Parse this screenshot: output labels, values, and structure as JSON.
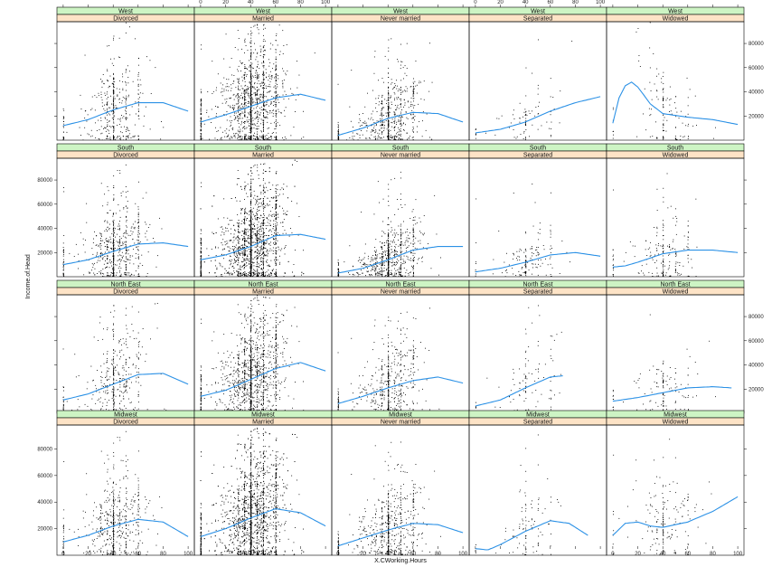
{
  "chart_data": {
    "type": "scatter",
    "xlabel": "X.CWorking.Hours",
    "ylabel": "Income.of.Head",
    "xlim": [
      -5,
      105
    ],
    "ylim": [
      0,
      98000
    ],
    "x_ticks": [
      0,
      20,
      40,
      60,
      80,
      100
    ],
    "y_ticks": [
      20000,
      40000,
      60000,
      80000
    ],
    "strip_colors": {
      "region": "#cdf4c4",
      "marital": "#fde3c6"
    },
    "point_color": "#000000",
    "curve_color": "#2b91e6",
    "regions": [
      "West",
      "South",
      "North East",
      "Midwest"
    ],
    "marital_statuses": [
      "Divorced",
      "Married",
      "Never married",
      "Separated",
      "Widowed"
    ],
    "panels": [
      {
        "region": "West",
        "marital": "Divorced",
        "n_points": 420,
        "smooth": {
          "x": [
            0,
            20,
            40,
            60,
            80,
            100
          ],
          "y": [
            12000,
            17000,
            25000,
            31000,
            31000,
            24000
          ]
        }
      },
      {
        "region": "West",
        "marital": "Married",
        "n_points": 1500,
        "smooth": {
          "x": [
            0,
            20,
            40,
            60,
            80,
            100
          ],
          "y": [
            15000,
            21000,
            28000,
            35000,
            38000,
            33000
          ]
        }
      },
      {
        "region": "West",
        "marital": "Never married",
        "n_points": 650,
        "smooth": {
          "x": [
            0,
            20,
            40,
            60,
            80,
            100
          ],
          "y": [
            4000,
            10000,
            18000,
            23000,
            22000,
            15000
          ]
        }
      },
      {
        "region": "West",
        "marital": "Separated",
        "n_points": 90,
        "smooth": {
          "x": [
            0,
            20,
            40,
            60,
            80,
            100
          ],
          "y": [
            6000,
            9000,
            15000,
            24000,
            31000,
            36000
          ]
        }
      },
      {
        "region": "West",
        "marital": "Widowed",
        "n_points": 140,
        "smooth": {
          "x": [
            0,
            5,
            10,
            15,
            20,
            30,
            40,
            60,
            80,
            100
          ],
          "y": [
            14000,
            35000,
            45000,
            48000,
            44000,
            30000,
            22000,
            19000,
            17000,
            13000
          ]
        }
      },
      {
        "region": "South",
        "marital": "Divorced",
        "n_points": 650,
        "smooth": {
          "x": [
            0,
            20,
            40,
            60,
            80,
            100
          ],
          "y": [
            10000,
            14000,
            21000,
            27000,
            28000,
            25000
          ]
        }
      },
      {
        "region": "South",
        "marital": "Married",
        "n_points": 2200,
        "smooth": {
          "x": [
            0,
            20,
            40,
            60,
            80,
            100
          ],
          "y": [
            14000,
            18000,
            25000,
            34000,
            35000,
            31000
          ]
        }
      },
      {
        "region": "South",
        "marital": "Never married",
        "n_points": 800,
        "smooth": {
          "x": [
            0,
            20,
            40,
            60,
            80,
            100
          ],
          "y": [
            3000,
            7000,
            14000,
            22000,
            25000,
            25000
          ]
        }
      },
      {
        "region": "South",
        "marital": "Separated",
        "n_points": 160,
        "smooth": {
          "x": [
            0,
            20,
            40,
            60,
            80,
            100
          ],
          "y": [
            4000,
            7000,
            12000,
            18000,
            20000,
            17000
          ]
        }
      },
      {
        "region": "South",
        "marital": "Widowed",
        "n_points": 210,
        "smooth": {
          "x": [
            0,
            10,
            20,
            40,
            60,
            80,
            100
          ],
          "y": [
            8000,
            9000,
            12000,
            19000,
            22000,
            22000,
            20000
          ]
        }
      },
      {
        "region": "North East",
        "marital": "Divorced",
        "n_points": 420,
        "smooth": {
          "x": [
            0,
            20,
            40,
            60,
            80,
            100
          ],
          "y": [
            11000,
            16000,
            24000,
            32000,
            33000,
            24000
          ]
        }
      },
      {
        "region": "North East",
        "marital": "Married",
        "n_points": 1500,
        "smooth": {
          "x": [
            0,
            20,
            40,
            60,
            80,
            100
          ],
          "y": [
            14000,
            19000,
            28000,
            37000,
            42000,
            35000
          ]
        }
      },
      {
        "region": "North East",
        "marital": "Never married",
        "n_points": 550,
        "smooth": {
          "x": [
            0,
            20,
            40,
            60,
            80,
            100
          ],
          "y": [
            8000,
            14000,
            21000,
            27000,
            30000,
            25000
          ]
        }
      },
      {
        "region": "North East",
        "marital": "Separated",
        "n_points": 110,
        "smooth": {
          "x": [
            0,
            20,
            40,
            60,
            70
          ],
          "y": [
            6000,
            11000,
            21000,
            30000,
            31000
          ]
        }
      },
      {
        "region": "North East",
        "marital": "Widowed",
        "n_points": 150,
        "smooth": {
          "x": [
            0,
            20,
            40,
            60,
            80,
            95
          ],
          "y": [
            10000,
            13000,
            17000,
            21000,
            22000,
            21000
          ]
        }
      },
      {
        "region": "Midwest",
        "marital": "Divorced",
        "n_points": 550,
        "smooth": {
          "x": [
            0,
            20,
            40,
            60,
            80,
            100
          ],
          "y": [
            10000,
            15000,
            22000,
            27000,
            25000,
            14000
          ]
        }
      },
      {
        "region": "Midwest",
        "marital": "Married",
        "n_points": 2200,
        "smooth": {
          "x": [
            0,
            20,
            40,
            60,
            80,
            100
          ],
          "y": [
            14000,
            20000,
            28000,
            35000,
            32000,
            22000
          ]
        }
      },
      {
        "region": "Midwest",
        "marital": "Never married",
        "n_points": 650,
        "smooth": {
          "x": [
            0,
            20,
            40,
            60,
            80,
            100
          ],
          "y": [
            7000,
            13000,
            19000,
            24000,
            23000,
            17000
          ]
        }
      },
      {
        "region": "Midwest",
        "marital": "Separated",
        "n_points": 110,
        "smooth": {
          "x": [
            0,
            10,
            20,
            40,
            60,
            75,
            90
          ],
          "y": [
            5000,
            4000,
            8000,
            18000,
            26000,
            24000,
            15000
          ]
        }
      },
      {
        "region": "Midwest",
        "marital": "Widowed",
        "n_points": 180,
        "smooth": {
          "x": [
            0,
            10,
            20,
            30,
            40,
            60,
            80,
            100
          ],
          "y": [
            15000,
            24000,
            25000,
            22000,
            21000,
            25000,
            33000,
            44000
          ]
        }
      }
    ]
  }
}
